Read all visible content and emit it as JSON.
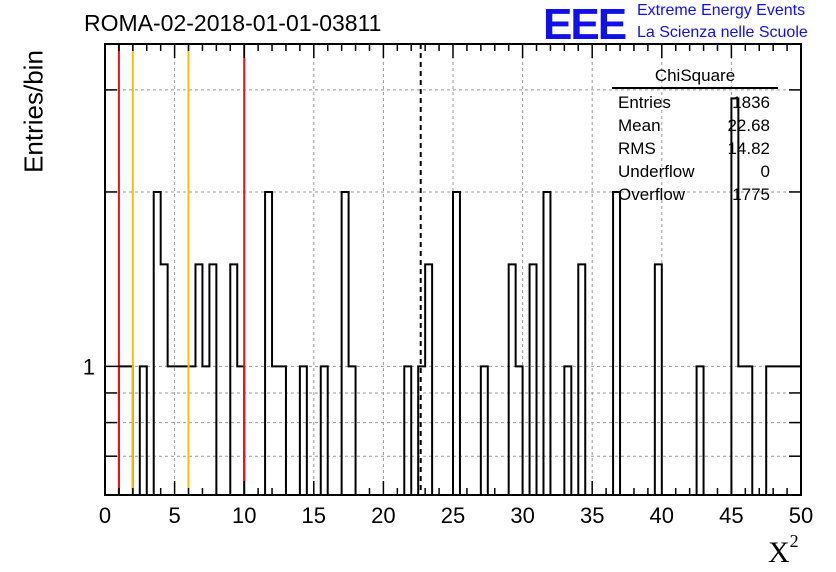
{
  "title": "ROMA-02-2018-01-01-03811",
  "brand": {
    "logo_text": "EEE",
    "line1": "Extreme Energy Events",
    "line2": "La Scienza nelle Scuole",
    "color": "#1010e8"
  },
  "stats": {
    "name": "ChiSquare",
    "rows": [
      {
        "label": "Entries",
        "value": "1836"
      },
      {
        "label": "Mean",
        "value": "22.68"
      },
      {
        "label": "RMS",
        "value": "14.82"
      },
      {
        "label": "Underflow",
        "value": "0"
      },
      {
        "label": "Overflow",
        "value": "1775"
      }
    ]
  },
  "chart_data": {
    "type": "bar",
    "histogram": true,
    "title": "ROMA-02-2018-01-01-03811",
    "xlabel": "X",
    "xlabel_superscript": "2",
    "ylabel": "Entries/bin",
    "log_y": true,
    "xlim": [
      0,
      50
    ],
    "ylim": [
      0.6,
      3.6
    ],
    "x_ticks": [
      "0",
      "5",
      "10",
      "15",
      "20",
      "25",
      "30",
      "35",
      "40",
      "45",
      "50"
    ],
    "y_ticks": [
      "1"
    ],
    "grid": true,
    "bin_width": 0.5,
    "bins": [
      {
        "x": 1.0,
        "y": 1
      },
      {
        "x": 1.5,
        "y": 1
      },
      {
        "x": 2.0,
        "y": 0
      },
      {
        "x": 2.5,
        "y": 1
      },
      {
        "x": 3.0,
        "y": 0
      },
      {
        "x": 3.5,
        "y": 2
      },
      {
        "x": 4.0,
        "y": 1.5
      },
      {
        "x": 4.5,
        "y": 1
      },
      {
        "x": 5.0,
        "y": 1
      },
      {
        "x": 5.5,
        "y": 1
      },
      {
        "x": 6.0,
        "y": 1
      },
      {
        "x": 6.5,
        "y": 1.5
      },
      {
        "x": 7.0,
        "y": 1
      },
      {
        "x": 7.5,
        "y": 1.5
      },
      {
        "x": 8.0,
        "y": 0
      },
      {
        "x": 8.5,
        "y": 0
      },
      {
        "x": 9.0,
        "y": 1.5
      },
      {
        "x": 9.5,
        "y": 1
      },
      {
        "x": 10.0,
        "y": 0
      },
      {
        "x": 10.5,
        "y": 0
      },
      {
        "x": 11.0,
        "y": 0
      },
      {
        "x": 11.5,
        "y": 2
      },
      {
        "x": 12.0,
        "y": 1
      },
      {
        "x": 12.5,
        "y": 1
      },
      {
        "x": 13.0,
        "y": 0
      },
      {
        "x": 13.5,
        "y": 0
      },
      {
        "x": 14.0,
        "y": 1
      },
      {
        "x": 14.5,
        "y": 0
      },
      {
        "x": 15.0,
        "y": 0
      },
      {
        "x": 15.5,
        "y": 1
      },
      {
        "x": 16.0,
        "y": 0
      },
      {
        "x": 16.5,
        "y": 0
      },
      {
        "x": 17.0,
        "y": 2
      },
      {
        "x": 17.5,
        "y": 1
      },
      {
        "x": 21.5,
        "y": 1
      },
      {
        "x": 22.0,
        "y": 0
      },
      {
        "x": 22.5,
        "y": 1
      },
      {
        "x": 23.0,
        "y": 1.5
      },
      {
        "x": 25.0,
        "y": 2
      },
      {
        "x": 27.0,
        "y": 1
      },
      {
        "x": 29.0,
        "y": 1.5
      },
      {
        "x": 29.5,
        "y": 1
      },
      {
        "x": 30.5,
        "y": 1.5
      },
      {
        "x": 31.5,
        "y": 2
      },
      {
        "x": 32.0,
        "y": 0
      },
      {
        "x": 33.0,
        "y": 1
      },
      {
        "x": 34.0,
        "y": 1.5
      },
      {
        "x": 36.5,
        "y": 2
      },
      {
        "x": 37.0,
        "y": 0
      },
      {
        "x": 39.5,
        "y": 1.5
      },
      {
        "x": 40.0,
        "y": 0
      },
      {
        "x": 42.5,
        "y": 1
      },
      {
        "x": 43.0,
        "y": 0
      },
      {
        "x": 45.0,
        "y": 2.9
      },
      {
        "x": 45.5,
        "y": 1
      },
      {
        "x": 46.0,
        "y": 1
      },
      {
        "x": 47.5,
        "y": 1
      },
      {
        "x": 48.0,
        "y": 1
      },
      {
        "x": 48.5,
        "y": 1
      },
      {
        "x": 49.0,
        "y": 1
      },
      {
        "x": 49.5,
        "y": 1
      }
    ],
    "vertical_lines": [
      {
        "x": 1.0,
        "color": "#e8141a",
        "style": "solid"
      },
      {
        "x": 2.0,
        "color": "#f2c20a",
        "style": "solid"
      },
      {
        "x": 6.0,
        "color": "#f2c20a",
        "style": "solid"
      },
      {
        "x": 10.0,
        "color": "#e8141a",
        "style": "solid"
      },
      {
        "x": 22.68,
        "color": "#000000",
        "style": "dashed"
      }
    ]
  }
}
